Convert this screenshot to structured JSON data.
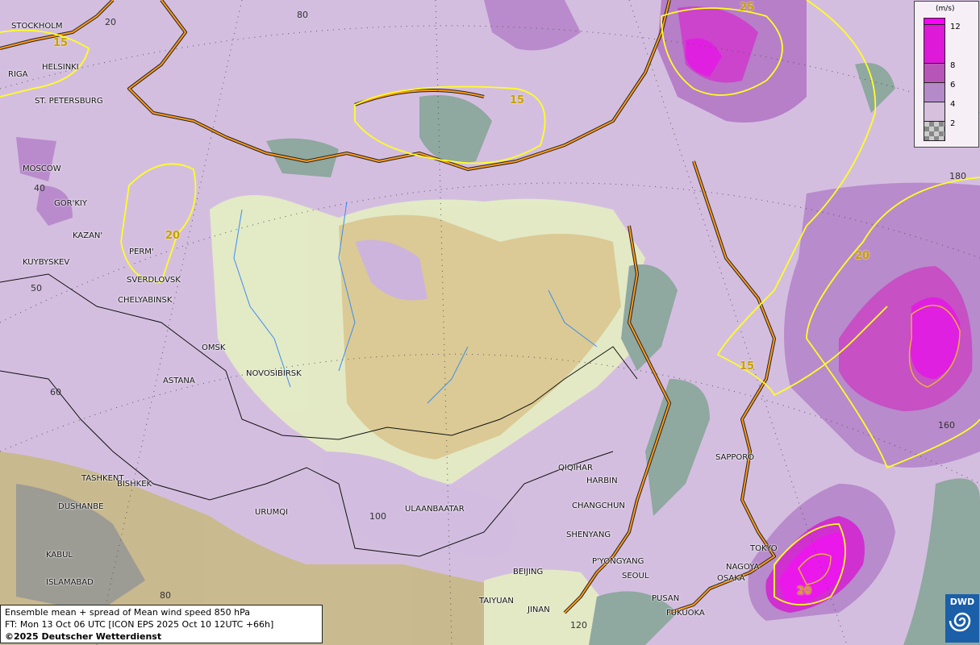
{
  "title": "Ensemble mean + spread of Mean wind speed 850 hPa",
  "forecast_time": "FT: Mon 13 Oct 06 UTC [ICON EPS 2025 Oct 10 12UTC +66h]",
  "copyright": "©2025 Deutscher Wetterdienst",
  "logo": "DWD",
  "legend": {
    "unit": "(m/s)",
    "ticks": [
      "12",
      "8",
      "6",
      "4",
      "2"
    ],
    "colors": [
      "#ff00ff",
      "#dd1ad8",
      "#b855b8",
      "#b48bc8",
      "#d6c0de",
      "checker"
    ]
  },
  "cities": [
    "STOCKHOLM",
    "HELSINKI",
    "RIGA",
    "ST. PETERSBURG",
    "MOSCOW",
    "GOR'KIY",
    "KAZAN'",
    "KUYBYSKEV",
    "PERM'",
    "SVERDLOVSK",
    "CHELYABINSK",
    "OMSK",
    "ASTANA",
    "NOVOSIBIRSK",
    "TASHKENT",
    "BISHKEK",
    "DUSHANBE",
    "URUMQI",
    "KABUL",
    "ISLAMABAD",
    "ULAANBAATAR",
    "QIQIHAR",
    "HARBIN",
    "CHANGCHUN",
    "SHENYANG",
    "P'YONGYANG",
    "SEOUL",
    "PUSAN",
    "FUKUOKA",
    "BEIJING",
    "TAIYUAN",
    "JINAN",
    "SAPPORO",
    "TOKYO",
    "NAGOYA",
    "OSAKA"
  ],
  "grid_labels": [
    "20",
    "80",
    "40",
    "50",
    "60",
    "80",
    "100",
    "120",
    "160",
    "180"
  ],
  "contour_labels": [
    "15",
    "15",
    "20",
    "25",
    "20",
    "15",
    "20"
  ]
}
